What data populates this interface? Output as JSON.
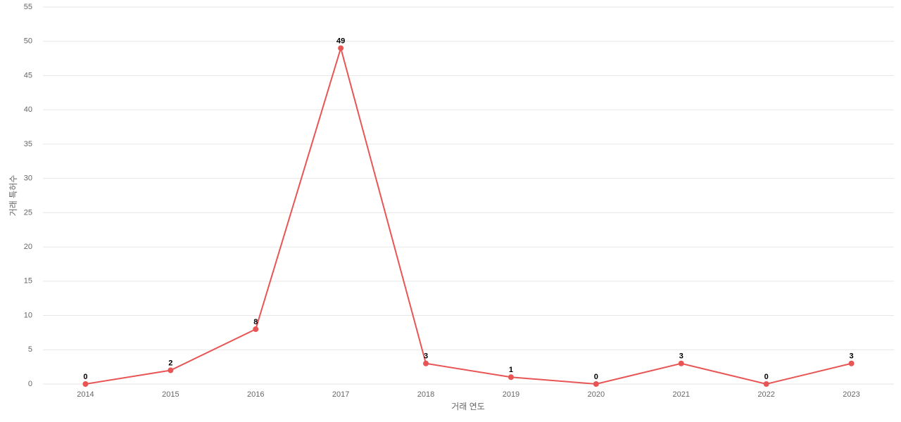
{
  "chart_data": {
    "type": "line",
    "x_label": "거래 연도",
    "y_label": "거래 특허수",
    "categories": [
      "2014",
      "2015",
      "2016",
      "2017",
      "2018",
      "2019",
      "2020",
      "2021",
      "2022",
      "2023"
    ],
    "series": [
      {
        "name": "거래 특허수",
        "color": "#e85555",
        "values": [
          0,
          2,
          8,
          49,
          3,
          1,
          0,
          3,
          0,
          3
        ]
      }
    ],
    "ylim": [
      0,
      55
    ],
    "yticks": [
      0,
      5,
      10,
      15,
      20,
      25,
      30,
      35,
      40,
      45,
      50,
      55
    ],
    "grid": true
  }
}
